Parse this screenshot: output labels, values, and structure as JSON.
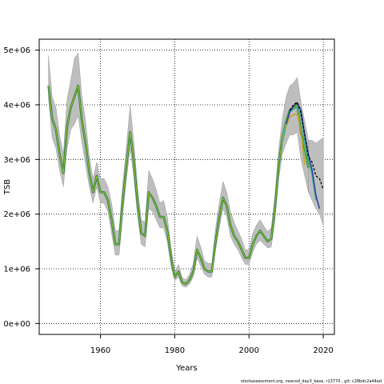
{
  "chart_data": {
    "type": "line",
    "title": "",
    "xlabel": "Years",
    "ylabel": "TSB",
    "xlim": [
      1943.5,
      2023
    ],
    "ylim": [
      -200000,
      5200000
    ],
    "x_ticks": [
      1960,
      1980,
      2000,
      2020
    ],
    "x_tick_labels": [
      "1960",
      "1980",
      "2000",
      "2020"
    ],
    "y_ticks": [
      0,
      1000000,
      2000000,
      3000000,
      4000000,
      5000000
    ],
    "y_tick_labels": [
      "0e+00",
      "1e+06",
      "2e+06",
      "3e+06",
      "4e+06",
      "5e+06"
    ],
    "grid": true,
    "footer": "stockassessment.org, neacod_day3_base, r13770 , git: c28bdc2a44ad",
    "colors": {
      "band": "#bebebe",
      "base_line": "#1a1a1a",
      "main_line": "#2a7a3a",
      "main_line_highlight": "#9acd32",
      "retro_teal": "#3cb4a0",
      "retro_blue": "#2e3a9e",
      "retro_gold": "#c8a020",
      "retro_black_dashed": "#000000"
    },
    "series": [
      {
        "role": "estimate",
        "x": [
          1946,
          1947,
          1948,
          1949,
          1950,
          1951,
          1952,
          1953,
          1954,
          1955,
          1956,
          1957,
          1958,
          1959,
          1960,
          1961,
          1962,
          1963,
          1964,
          1965,
          1966,
          1967,
          1968,
          1969,
          1970,
          1971,
          1972,
          1973,
          1974,
          1975,
          1976,
          1977,
          1978,
          1979,
          1980,
          1981,
          1982,
          1983,
          1984,
          1985,
          1986,
          1987,
          1988,
          1989,
          1990,
          1991,
          1992,
          1993,
          1994,
          1995,
          1996,
          1997,
          1998,
          1999,
          2000,
          2001,
          2002,
          2003,
          2004,
          2005,
          2006,
          2007,
          2008,
          2009,
          2010,
          2011,
          2012,
          2013,
          2014,
          2015,
          2016
        ],
        "y": [
          4350000,
          3750000,
          3550000,
          3100000,
          2750000,
          3600000,
          3950000,
          4150000,
          4350000,
          3700000,
          3300000,
          2750000,
          2400000,
          2700000,
          2400000,
          2400000,
          2250000,
          1900000,
          1450000,
          1450000,
          2250000,
          2900000,
          3500000,
          2950000,
          2200000,
          1650000,
          1600000,
          2400000,
          2300000,
          2150000,
          1950000,
          1950000,
          1700000,
          1200000,
          850000,
          950000,
          750000,
          720000,
          800000,
          950000,
          1350000,
          1200000,
          1000000,
          950000,
          950000,
          1500000,
          1950000,
          2300000,
          2150000,
          1800000,
          1600000,
          1500000,
          1350000,
          1200000,
          1200000,
          1450000,
          1600000,
          1700000,
          1600000,
          1500000,
          1550000,
          2100000,
          2900000,
          3400000,
          3700000,
          3900000,
          3950000,
          4000000,
          3500000,
          3200000,
          2850000
        ],
        "lower": [
          4100000,
          3400000,
          3200000,
          2800000,
          2500000,
          3200000,
          3550000,
          3650000,
          3800000,
          3300000,
          2900000,
          2500000,
          2200000,
          2500000,
          2200000,
          2200000,
          2050000,
          1650000,
          1250000,
          1250000,
          2000000,
          2650000,
          3200000,
          2650000,
          1950000,
          1450000,
          1400000,
          2100000,
          2050000,
          1900000,
          1750000,
          1750000,
          1500000,
          1050000,
          780000,
          850000,
          690000,
          660000,
          720000,
          850000,
          1200000,
          1050000,
          900000,
          850000,
          850000,
          1350000,
          1750000,
          2100000,
          1950000,
          1600000,
          1450000,
          1350000,
          1200000,
          1080000,
          1080000,
          1300000,
          1450000,
          1520000,
          1450000,
          1380000,
          1400000,
          1900000,
          2650000,
          3100000,
          3300000,
          3450000,
          3450000,
          3500000,
          3000000,
          2700000,
          2400000
        ],
        "upper": [
          4900000,
          4150000,
          3950000,
          3450000,
          3100000,
          4100000,
          4450000,
          4850000,
          4950000,
          4150000,
          3700000,
          3050000,
          2650000,
          2950000,
          2650000,
          2650000,
          2500000,
          2200000,
          1700000,
          1700000,
          2550000,
          3250000,
          4000000,
          3300000,
          2500000,
          1900000,
          1850000,
          2800000,
          2650000,
          2450000,
          2200000,
          2250000,
          1950000,
          1400000,
          950000,
          1080000,
          840000,
          800000,
          900000,
          1100000,
          1600000,
          1400000,
          1150000,
          1100000,
          1100000,
          1750000,
          2200000,
          2600000,
          2400000,
          2050000,
          1850000,
          1700000,
          1550000,
          1350000,
          1350000,
          1650000,
          1800000,
          1900000,
          1780000,
          1680000,
          1750000,
          2350000,
          3200000,
          3750000,
          4150000,
          4350000,
          4400000,
          4500000,
          4050000,
          3700000,
          3350000
        ]
      },
      {
        "role": "retro_gold",
        "x": [
          2009,
          2010,
          2011,
          2012,
          2013,
          2014,
          2015
        ],
        "y": [
          3300000,
          3600000,
          3780000,
          3820000,
          3830000,
          3500000,
          2900000
        ]
      },
      {
        "role": "retro_teal",
        "x": [
          2009,
          2010,
          2011,
          2012,
          2013,
          2014,
          2015,
          2016,
          2017,
          2018
        ],
        "y": [
          3320000,
          3650000,
          3860000,
          3920000,
          3950000,
          3800000,
          3300000,
          3000000,
          2700000,
          2250000
        ]
      },
      {
        "role": "retro_blue",
        "x": [
          2010,
          2011,
          2012,
          2013,
          2014,
          2015,
          2016,
          2017,
          2018,
          2019
        ],
        "y": [
          3650000,
          3880000,
          3980000,
          4030000,
          3900000,
          3450000,
          3100000,
          2800000,
          2350000,
          2100000
        ]
      },
      {
        "role": "retro_black_dashed",
        "x": [
          2011,
          2012,
          2013,
          2014,
          2015,
          2016,
          2017,
          2018,
          2019,
          2020
        ],
        "y": [
          3900000,
          4000000,
          4050000,
          3850000,
          3450000,
          3050000,
          2950000,
          2700000,
          2650000,
          2450000
        ]
      },
      {
        "role": "forecast_band",
        "x": [
          2016,
          2017,
          2018,
          2019,
          2020
        ],
        "lower": [
          2400000,
          2250000,
          2100000,
          2000000,
          1800000
        ],
        "upper": [
          3350000,
          3350000,
          3300000,
          3350000,
          3400000
        ]
      }
    ]
  }
}
